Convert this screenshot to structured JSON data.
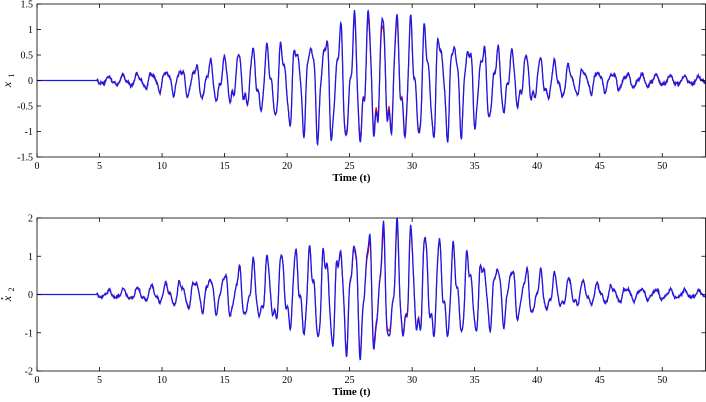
{
  "chart_data": [
    {
      "type": "line",
      "title": "",
      "xlabel": "Time (t)",
      "ylabel_base": "x",
      "ylabel_sub": "1",
      "ylabel_dot": false,
      "xlim": [
        0,
        53.5
      ],
      "ylim": [
        -1.5,
        1.5
      ],
      "xticks": [
        0,
        5,
        10,
        15,
        20,
        25,
        30,
        35,
        40,
        45,
        50
      ],
      "yticks": [
        -1.5,
        -1,
        -0.5,
        0,
        0.5,
        1,
        1.5
      ],
      "ytick_labels": [
        "-1.5",
        "-1",
        "-0.5",
        "0",
        "0.5",
        "1",
        "1.5"
      ],
      "grid": false,
      "legend": "none",
      "signal": {
        "onset": 4.8,
        "envelope_peak_time": 25.6,
        "peak_value": 1.38,
        "trough_value": -1.25,
        "approx_period": 1.15
      },
      "series": [
        {
          "color": "#ff0000",
          "role": "reference",
          "width": 1.1
        },
        {
          "color": "#1a1ae6",
          "role": "response",
          "width": 1.3
        }
      ]
    },
    {
      "type": "line",
      "title": "",
      "xlabel": "Time (t)",
      "ylabel_base": "x",
      "ylabel_sub": "2",
      "ylabel_dot": true,
      "xlim": [
        0,
        53.5
      ],
      "ylim": [
        -2,
        2
      ],
      "xticks": [
        0,
        5,
        10,
        15,
        20,
        25,
        30,
        35,
        40,
        45,
        50
      ],
      "yticks": [
        -2,
        -1,
        0,
        1,
        2
      ],
      "ytick_labels": [
        "-2",
        "-1",
        "0",
        "1",
        "2"
      ],
      "grid": false,
      "legend": "none",
      "signal": {
        "onset": 4.8,
        "envelope_peak_time": 25.6,
        "peak_value": 2.0,
        "trough_value": -1.7,
        "approx_period": 1.15
      },
      "series": [
        {
          "color": "#ff0000",
          "role": "reference",
          "width": 1.1
        },
        {
          "color": "#1a1ae6",
          "role": "response",
          "width": 1.3
        }
      ]
    }
  ]
}
